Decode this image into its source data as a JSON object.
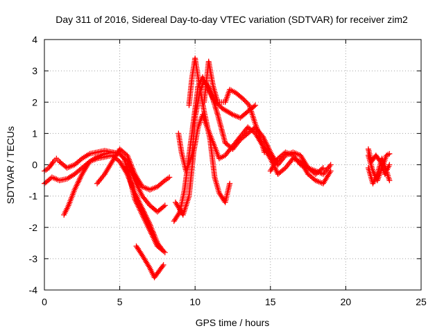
{
  "chart_data": {
    "type": "scatter",
    "title": "Day 311 of 2016, Sidereal Day-to-day VTEC variation (SDTVAR) for receiver zim2",
    "xlabel": "GPS time / hours",
    "ylabel": "SDTVAR / TECUs",
    "xlim": [
      0,
      25
    ],
    "ylim": [
      -4,
      4
    ],
    "grid": true,
    "marker": "+",
    "xticks": [
      "0",
      "5",
      "10",
      "15",
      "20",
      "25"
    ],
    "yticks": [
      "-4",
      "-3",
      "-2",
      "-1",
      "0",
      "1",
      "2",
      "3",
      "4"
    ],
    "series": [
      {
        "name": "track-1",
        "color": "#ff0000",
        "points": [
          [
            0,
            -0.6
          ],
          [
            0.5,
            -0.4
          ],
          [
            1,
            -0.5
          ],
          [
            1.5,
            -0.45
          ],
          [
            2,
            -0.3
          ],
          [
            2.5,
            -0.1
          ],
          [
            3,
            0.1
          ],
          [
            3.5,
            0.2
          ],
          [
            4,
            0.25
          ],
          [
            4.5,
            0.3
          ],
          [
            5,
            0.1
          ],
          [
            5.5,
            -0.3
          ],
          [
            6,
            -0.9
          ],
          [
            6.5,
            -1.4
          ],
          [
            7,
            -1.9
          ],
          [
            7.5,
            -2.5
          ],
          [
            7.8,
            -2.7
          ]
        ]
      },
      {
        "name": "track-2",
        "color": "#ff0000",
        "points": [
          [
            0,
            -0.2
          ],
          [
            0.3,
            -0.1
          ],
          [
            0.6,
            0.1
          ],
          [
            0.8,
            0.2
          ],
          [
            1,
            0.1
          ],
          [
            1.5,
            -0.1
          ],
          [
            2,
            0
          ],
          [
            2.5,
            0.2
          ],
          [
            3,
            0.35
          ],
          [
            3.5,
            0.4
          ],
          [
            4,
            0.45
          ],
          [
            4.5,
            0.4
          ],
          [
            5,
            0.35
          ],
          [
            5.3,
            0.2
          ],
          [
            5.6,
            -0.3
          ],
          [
            6,
            -1.1
          ],
          [
            6.5,
            -1.6
          ],
          [
            7,
            -2.1
          ],
          [
            7.5,
            -2.6
          ],
          [
            8,
            -2.8
          ]
        ]
      },
      {
        "name": "track-3",
        "color": "#ff0000",
        "points": [
          [
            1.3,
            -1.6
          ],
          [
            1.6,
            -1.3
          ],
          [
            2,
            -0.8
          ],
          [
            2.5,
            -0.3
          ],
          [
            3,
            0.1
          ],
          [
            3.5,
            0.25
          ],
          [
            4,
            0.35
          ],
          [
            4.5,
            0.4
          ],
          [
            5,
            0.35
          ],
          [
            5.5,
            0.1
          ],
          [
            6,
            -0.5
          ],
          [
            6.5,
            -1
          ],
          [
            7,
            -1.3
          ],
          [
            7.5,
            -1.5
          ],
          [
            8,
            -1.3
          ]
        ]
      },
      {
        "name": "track-4",
        "color": "#ff0000",
        "points": [
          [
            3.5,
            -0.6
          ],
          [
            4,
            -0.3
          ],
          [
            4.5,
            0.1
          ],
          [
            5,
            0.5
          ],
          [
            5.5,
            0.3
          ],
          [
            6,
            -0.3
          ],
          [
            6.5,
            -0.7
          ],
          [
            7,
            -0.8
          ],
          [
            7.5,
            -0.7
          ],
          [
            8,
            -0.5
          ],
          [
            8.3,
            -0.4
          ]
        ]
      },
      {
        "name": "track-5",
        "color": "#ff0000",
        "points": [
          [
            6.1,
            -2.6
          ],
          [
            6.5,
            -2.9
          ],
          [
            7,
            -3.3
          ],
          [
            7.3,
            -3.6
          ],
          [
            7.6,
            -3.4
          ],
          [
            7.9,
            -3.2
          ]
        ]
      },
      {
        "name": "track-6",
        "color": "#ff0000",
        "points": [
          [
            8.6,
            -1.8
          ],
          [
            9,
            -1.5
          ],
          [
            9.3,
            -0.8
          ],
          [
            9.6,
            0.3
          ],
          [
            9.9,
            1.4
          ],
          [
            10.2,
            2.5
          ],
          [
            10.5,
            2.8
          ],
          [
            10.8,
            2.5
          ],
          [
            11.2,
            2.1
          ],
          [
            11.8,
            1.8
          ],
          [
            12.5,
            1.6
          ],
          [
            13,
            1.5
          ],
          [
            13.5,
            1.7
          ],
          [
            14,
            1.9
          ]
        ]
      },
      {
        "name": "track-7",
        "color": "#ff0000",
        "points": [
          [
            8.7,
            -1.2
          ],
          [
            9.2,
            -1.6
          ],
          [
            9.6,
            -1.0
          ],
          [
            9.9,
            0.4
          ],
          [
            10.2,
            1.2
          ],
          [
            10.5,
            1.6
          ],
          [
            10.8,
            1.2
          ],
          [
            11.2,
            0.7
          ],
          [
            11.6,
            0.2
          ],
          [
            12,
            0.3
          ],
          [
            12.5,
            0.6
          ],
          [
            13,
            0.9
          ],
          [
            13.5,
            1.2
          ],
          [
            14,
            1.0
          ],
          [
            14.5,
            0.6
          ],
          [
            15,
            0.2
          ],
          [
            15.5,
            -0.3
          ],
          [
            16,
            -0.1
          ],
          [
            16.5,
            0.2
          ],
          [
            17,
            0.1
          ],
          [
            17.5,
            -0.3
          ],
          [
            18,
            -0.5
          ],
          [
            18.5,
            -0.6
          ],
          [
            19,
            -0.2
          ]
        ]
      },
      {
        "name": "track-8",
        "color": "#ff0000",
        "points": [
          [
            8.9,
            1.0
          ],
          [
            9.1,
            0.4
          ],
          [
            9.4,
            -0.2
          ],
          [
            9.8,
            0.3
          ],
          [
            10,
            1.5
          ],
          [
            10.3,
            2.3
          ],
          [
            10.6,
            2.7
          ],
          [
            11,
            2.4
          ],
          [
            11.5,
            1.6
          ],
          [
            12,
            0.7
          ],
          [
            12.5,
            0.5
          ],
          [
            13,
            0.8
          ],
          [
            13.5,
            1.0
          ],
          [
            14,
            1.2
          ],
          [
            14.5,
            0.9
          ],
          [
            15,
            0.4
          ],
          [
            15.5,
            0
          ],
          [
            16,
            0.3
          ],
          [
            16.5,
            0.4
          ],
          [
            17,
            0.3
          ],
          [
            17.5,
            -0.1
          ],
          [
            18,
            -0.3
          ],
          [
            18.5,
            -0.1
          ]
        ]
      },
      {
        "name": "track-9",
        "color": "#ff0000",
        "points": [
          [
            9.6,
            1.9
          ],
          [
            9.8,
            2.8
          ],
          [
            10,
            3.4
          ],
          [
            10.3,
            2.5
          ],
          [
            10.6,
            1.7
          ],
          [
            11,
            0.8
          ],
          [
            11.3,
            -0.4
          ],
          [
            11.6,
            -0.9
          ],
          [
            12,
            -1.2
          ],
          [
            12.3,
            -0.6
          ]
        ]
      },
      {
        "name": "track-10",
        "color": "#ff0000",
        "points": [
          [
            10.6,
            2.0
          ],
          [
            10.9,
            3.3
          ],
          [
            11.2,
            2.5
          ],
          [
            11.5,
            2.0
          ],
          [
            12,
            2.0
          ],
          [
            12.3,
            2.4
          ],
          [
            12.7,
            2.3
          ],
          [
            13.2,
            2.1
          ],
          [
            13.6,
            1.9
          ],
          [
            14,
            1.3
          ],
          [
            14.3,
            0.9
          ],
          [
            14.6,
            0.4
          ]
        ]
      },
      {
        "name": "track-11",
        "color": "#ff0000",
        "points": [
          [
            15,
            -0.2
          ],
          [
            15.5,
            0.2
          ],
          [
            16,
            0.4
          ],
          [
            16.5,
            0.3
          ],
          [
            17,
            0
          ],
          [
            17.5,
            -0.1
          ],
          [
            18,
            -0.2
          ],
          [
            18.5,
            -0.3
          ],
          [
            19,
            0
          ]
        ]
      },
      {
        "name": "track-12",
        "color": "#ff0000",
        "points": [
          [
            21.5,
            0.3
          ],
          [
            21.8,
            -0.2
          ],
          [
            22.1,
            -0.5
          ],
          [
            22.4,
            -0.1
          ],
          [
            22.7,
            0.3
          ],
          [
            22.9,
            0.35
          ]
        ]
      },
      {
        "name": "track-13",
        "color": "#ff0000",
        "points": [
          [
            21.5,
            -0.1
          ],
          [
            21.8,
            -0.6
          ],
          [
            22.1,
            -0.3
          ],
          [
            22.4,
            0.2
          ],
          [
            22.7,
            -0.2
          ],
          [
            22.9,
            -0.5
          ]
        ]
      },
      {
        "name": "track-14",
        "color": "#ff0000",
        "points": [
          [
            21.5,
            0.5
          ],
          [
            21.7,
            0.1
          ],
          [
            22,
            0.3
          ],
          [
            22.3,
            0.1
          ],
          [
            22.6,
            -0.3
          ],
          [
            22.9,
            0
          ]
        ]
      }
    ]
  }
}
